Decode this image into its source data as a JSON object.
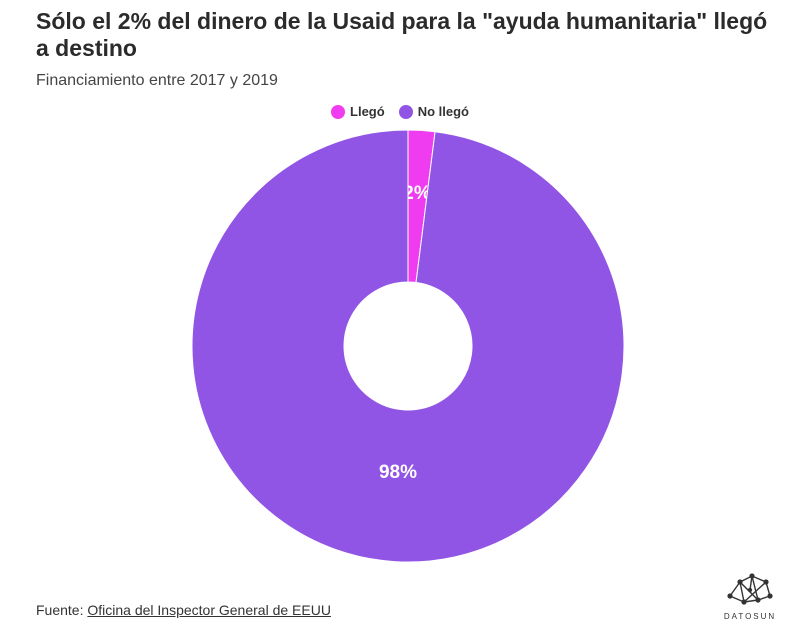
{
  "header": {
    "title": "Sólo el 2% del dinero de la Usaid para la \"ayuda humanitaria\" llegó a destino",
    "subtitle": "Financiamiento entre 2017 y 2019"
  },
  "footer": {
    "source_prefix": "Fuente: ",
    "source_link": "Oficina del Inspector General de EEUU",
    "logo_text": "DATOSUN"
  },
  "chart_data": {
    "type": "pie",
    "donut": true,
    "legend_position": "top-center",
    "series": [
      {
        "name": "Llegó",
        "value": 2,
        "label": "2%",
        "color": "#f03cf0"
      },
      {
        "name": "No llegó",
        "value": 98,
        "label": "98%",
        "color": "#9155e6"
      }
    ]
  }
}
